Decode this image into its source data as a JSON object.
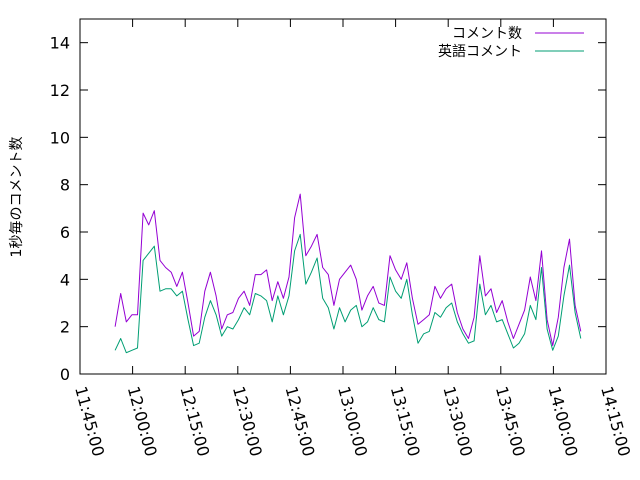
{
  "chart_data": {
    "type": "line",
    "title": "",
    "xlabel": "",
    "ylabel": "1秒毎のコメント数",
    "ylim": [
      0,
      15
    ],
    "yticks": [
      0,
      2,
      4,
      6,
      8,
      10,
      12,
      14
    ],
    "xlim": [
      "11:45:00",
      "14:15:00"
    ],
    "xticks": [
      "11:45:00",
      "12:00:00",
      "12:15:00",
      "12:30:00",
      "12:45:00",
      "13:00:00",
      "13:15:00",
      "13:30:00",
      "13:45:00",
      "14:00:00",
      "14:15:00"
    ],
    "grid": false,
    "legend": "top-right",
    "colors": {
      "comment_count": "#9400d3",
      "english_comment": "#009e73"
    },
    "x": [
      "11:55:00",
      "11:56:36",
      "11:58:12",
      "11:59:48",
      "12:01:24",
      "12:03:00",
      "12:04:36",
      "12:06:12",
      "12:07:48",
      "12:09:24",
      "12:11:00",
      "12:12:36",
      "12:14:12",
      "12:15:48",
      "12:17:24",
      "12:19:00",
      "12:20:36",
      "12:22:12",
      "12:23:48",
      "12:25:24",
      "12:27:00",
      "12:28:36",
      "12:30:12",
      "12:31:48",
      "12:33:24",
      "12:35:00",
      "12:36:36",
      "12:38:12",
      "12:39:48",
      "12:41:24",
      "12:43:00",
      "12:44:36",
      "12:46:12",
      "12:47:48",
      "12:49:24",
      "12:51:00",
      "12:52:36",
      "12:54:12",
      "12:55:48",
      "12:57:24",
      "12:59:00",
      "13:00:36",
      "13:02:12",
      "13:03:48",
      "13:05:24",
      "13:07:00",
      "13:08:36",
      "13:10:12",
      "13:11:48",
      "13:13:24",
      "13:15:00",
      "13:16:36",
      "13:18:12",
      "13:19:48",
      "13:21:24",
      "13:23:00",
      "13:24:36",
      "13:26:12",
      "13:27:48",
      "13:29:24",
      "13:31:00",
      "13:32:36",
      "13:34:12",
      "13:35:48",
      "13:37:24",
      "13:39:00",
      "13:40:36",
      "13:42:12",
      "13:43:48",
      "13:45:24",
      "13:47:00",
      "13:48:36",
      "13:50:12",
      "13:51:48",
      "13:53:24",
      "13:55:00",
      "13:56:36",
      "13:58:12",
      "13:59:48",
      "14:01:24",
      "14:03:00",
      "14:04:36",
      "14:06:12",
      "14:07:48"
    ],
    "series": [
      {
        "name": "コメント数",
        "key": "comment_count",
        "values": [
          2.0,
          3.4,
          2.2,
          2.5,
          2.5,
          6.8,
          6.3,
          6.9,
          4.8,
          4.5,
          4.3,
          3.7,
          4.3,
          3.0,
          1.6,
          1.8,
          3.5,
          4.3,
          3.3,
          1.9,
          2.5,
          2.6,
          3.2,
          3.5,
          2.9,
          4.2,
          4.2,
          4.4,
          3.1,
          3.9,
          3.2,
          4.1,
          6.6,
          7.6,
          5.0,
          5.4,
          5.9,
          4.5,
          4.2,
          2.9,
          4.0,
          4.3,
          4.6,
          4.0,
          2.7,
          3.3,
          3.7,
          3.0,
          2.9,
          5.0,
          4.4,
          4.0,
          4.7,
          3.2,
          2.1,
          2.3,
          2.5,
          3.7,
          3.2,
          3.6,
          3.8,
          2.6,
          1.9,
          1.5,
          2.4,
          5.0,
          3.3,
          3.6,
          2.6,
          3.1,
          2.2,
          1.5,
          2.1,
          2.7,
          4.1,
          3.1,
          5.2,
          2.3,
          1.2,
          2.4,
          4.5,
          5.7,
          2.9,
          1.8
        ]
      },
      {
        "name": "英語コメント",
        "key": "english_comment",
        "values": [
          1.0,
          1.5,
          0.9,
          1.0,
          1.1,
          4.8,
          5.1,
          5.4,
          3.5,
          3.6,
          3.6,
          3.3,
          3.5,
          2.3,
          1.2,
          1.3,
          2.4,
          3.1,
          2.5,
          1.6,
          2.0,
          1.9,
          2.3,
          2.8,
          2.5,
          3.4,
          3.3,
          3.1,
          2.2,
          3.3,
          2.5,
          3.3,
          5.2,
          5.9,
          3.8,
          4.3,
          4.9,
          3.2,
          2.8,
          1.9,
          2.8,
          2.2,
          2.7,
          2.9,
          2.0,
          2.2,
          2.8,
          2.3,
          2.2,
          4.1,
          3.5,
          3.2,
          4.0,
          2.5,
          1.3,
          1.7,
          1.8,
          2.6,
          2.4,
          2.8,
          3.0,
          2.2,
          1.7,
          1.3,
          1.4,
          3.8,
          2.5,
          2.9,
          2.2,
          2.3,
          1.7,
          1.1,
          1.3,
          1.7,
          2.9,
          2.3,
          4.5,
          1.9,
          1.0,
          1.6,
          3.3,
          4.6,
          2.6,
          1.5
        ]
      }
    ]
  }
}
